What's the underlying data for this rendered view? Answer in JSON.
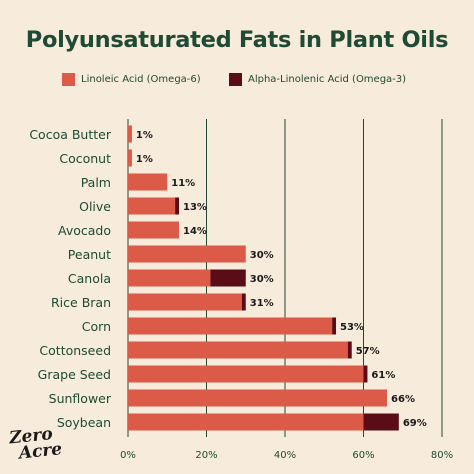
{
  "chart_data": {
    "type": "bar",
    "orientation": "horizontal",
    "stacked": true,
    "title": "Polyunsaturated Fats in Plant Oils",
    "categories": [
      "Cocoa Butter",
      "Coconut",
      "Palm",
      "Olive",
      "Avocado",
      "Peanut",
      "Canola",
      "Rice Bran",
      "Corn",
      "Cottonseed",
      "Grape Seed",
      "Sunflower",
      "Soybean"
    ],
    "series": [
      {
        "name": "Linoleic Acid (Omega-6)",
        "color": "#db5a48",
        "values": [
          1,
          1,
          10,
          12,
          13,
          30,
          21,
          29,
          52,
          56,
          60,
          66,
          60
        ]
      },
      {
        "name": "Alpha-Linolenic Acid (Omega-3)",
        "color": "#5a0d16",
        "values": [
          0,
          0,
          0,
          1,
          0,
          0,
          9,
          1,
          1,
          1,
          1,
          0,
          9
        ]
      }
    ],
    "total_labels": [
      "1%",
      "1%",
      "11%",
      "13%",
      "14%",
      "30%",
      "30%",
      "31%",
      "53%",
      "57%",
      "61%",
      "66%",
      "69%"
    ],
    "xlim": [
      0,
      80
    ],
    "xticks": [
      "0%",
      "20%",
      "40%",
      "60%",
      "80%"
    ],
    "grid": true,
    "legend_position": "top"
  },
  "logo": {
    "line1": "Zero",
    "line2": "Acre"
  },
  "colors": {
    "background": "#f7ebdc",
    "text": "#1f4a33",
    "grid": "#1f4a33"
  }
}
